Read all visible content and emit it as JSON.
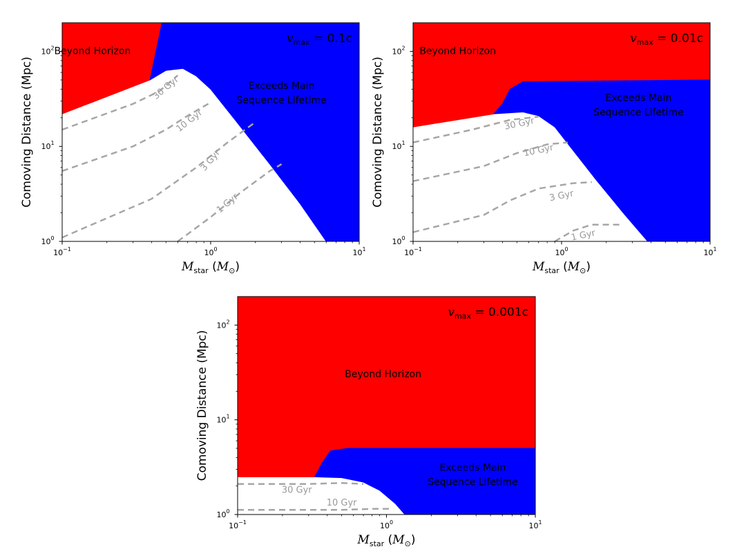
{
  "chart_data": [
    {
      "type": "area",
      "title": "v_max = 0.1c",
      "title_parts": {
        "var": "v",
        "sub": "max",
        "rest": " = 0.1c"
      },
      "xlabel": "M_star (M_⊙)",
      "xlabel_parts": {
        "var": "M",
        "sub": "star",
        "unit": "M",
        "unit_sub": "⊙"
      },
      "ylabel": "Comoving Distance (Mpc)",
      "xscale": "log",
      "yscale": "log",
      "xlim": [
        0.1,
        10
      ],
      "ylim": [
        1,
        200
      ],
      "xticks": [
        {
          "v": 0.1,
          "base": "10",
          "exp": "−1"
        },
        {
          "v": 1,
          "base": "10",
          "exp": "0"
        },
        {
          "v": 10,
          "base": "10",
          "exp": "1"
        }
      ],
      "yticks": [
        {
          "v": 1,
          "base": "10",
          "exp": "0"
        },
        {
          "v": 10,
          "base": "10",
          "exp": "1"
        },
        {
          "v": 100,
          "base": "10",
          "exp": "2"
        }
      ],
      "regions": [
        {
          "name": "Beyond Horizon",
          "lines": [
            "Beyond Horizon"
          ],
          "color": "#ff0000",
          "label_pos": [
            0.16,
            100
          ],
          "polygon": [
            [
              0.1,
              200
            ],
            [
              0.1,
              22
            ],
            [
              0.39,
              50
            ],
            [
              0.47,
              200
            ]
          ]
        },
        {
          "name": "Exceeds Main Sequence Lifetime",
          "lines": [
            "Exceeds Main",
            "Sequence Lifetime"
          ],
          "color": "#0000ff",
          "label_pos": [
            3.0,
            36
          ],
          "polygon": [
            [
              0.47,
              200
            ],
            [
              0.39,
              50
            ],
            [
              0.5,
              63
            ],
            [
              0.65,
              66
            ],
            [
              0.8,
              55
            ],
            [
              1.0,
              40
            ],
            [
              1.5,
              18
            ],
            [
              2.5,
              6.5
            ],
            [
              4.0,
              2.5
            ],
            [
              6.0,
              1
            ],
            [
              10,
              1
            ],
            [
              10,
              200
            ]
          ]
        }
      ],
      "boundary": [
        [
          0.1,
          22
        ],
        [
          0.39,
          50
        ],
        [
          0.5,
          63
        ],
        [
          0.65,
          66
        ],
        [
          0.8,
          55
        ],
        [
          1.0,
          40
        ],
        [
          1.5,
          18
        ],
        [
          2.5,
          6.5
        ],
        [
          4.0,
          2.5
        ],
        [
          6.0,
          1
        ]
      ],
      "contours": [
        {
          "label": "30 Gyr",
          "points": [
            [
              0.1,
              15
            ],
            [
              0.3,
              28
            ],
            [
              0.45,
              38
            ],
            [
              0.6,
              56
            ]
          ],
          "label_pos": [
            0.5,
            41
          ],
          "rot": -40
        },
        {
          "label": "10 Gyr",
          "points": [
            [
              0.1,
              5.5
            ],
            [
              0.3,
              10
            ],
            [
              0.5,
              15
            ],
            [
              0.7,
              21
            ],
            [
              1.0,
              29
            ]
          ],
          "label_pos": [
            0.72,
            18.5
          ],
          "rot": -38
        },
        {
          "label": "3 Gyr",
          "points": [
            [
              0.1,
              1.1
            ],
            [
              0.4,
              2.8
            ],
            [
              0.8,
              6
            ],
            [
              1.3,
              11
            ],
            [
              2.0,
              18
            ]
          ],
          "label_pos": [
            1.0,
            7.1
          ],
          "rot": -50
        },
        {
          "label": "1 Gyr",
          "points": [
            [
              0.6,
              1
            ],
            [
              1.0,
              1.8
            ],
            [
              1.6,
              3.3
            ],
            [
              2.5,
              5.5
            ],
            [
              3.0,
              6.5
            ]
          ],
          "label_pos": [
            1.3,
            2.5
          ],
          "rot": -40
        }
      ],
      "vmax_label": "v_max = 0.1c"
    },
    {
      "type": "area",
      "title": "v_max = 0.01c",
      "title_parts": {
        "var": "v",
        "sub": "max",
        "rest": " = 0.01c"
      },
      "xlabel": "M_star (M_⊙)",
      "xlabel_parts": {
        "var": "M",
        "sub": "star",
        "unit": "M",
        "unit_sub": "⊙"
      },
      "ylabel": "Comoving Distance (Mpc)",
      "xscale": "log",
      "yscale": "log",
      "xlim": [
        0.1,
        10
      ],
      "ylim": [
        1,
        200
      ],
      "xticks": [
        {
          "v": 0.1,
          "base": "10",
          "exp": "−1"
        },
        {
          "v": 1,
          "base": "10",
          "exp": "0"
        },
        {
          "v": 10,
          "base": "10",
          "exp": "1"
        }
      ],
      "yticks": [
        {
          "v": 1,
          "base": "10",
          "exp": "0"
        },
        {
          "v": 10,
          "base": "10",
          "exp": "1"
        },
        {
          "v": 100,
          "base": "10",
          "exp": "2"
        }
      ],
      "regions": [
        {
          "name": "Beyond Horizon",
          "lines": [
            "Beyond Horizon"
          ],
          "color": "#ff0000",
          "label_pos": [
            0.2,
            100
          ],
          "polygon": [
            [
              0.1,
              200
            ],
            [
              0.1,
              16
            ],
            [
              0.35,
              22
            ],
            [
              0.4,
              28
            ],
            [
              0.45,
              40
            ],
            [
              0.55,
              48
            ],
            [
              10,
              50
            ],
            [
              10,
              200
            ]
          ]
        },
        {
          "name": "Exceeds Main Sequence Lifetime",
          "lines": [
            "Exceeds Main",
            "Sequence Lifetime"
          ],
          "color": "#0000ff",
          "label_pos": [
            3.3,
            27
          ],
          "polygon": [
            [
              0.35,
              22
            ],
            [
              0.4,
              28
            ],
            [
              0.45,
              40
            ],
            [
              0.55,
              48
            ],
            [
              10,
              50
            ],
            [
              10,
              1
            ],
            [
              3.8,
              1
            ],
            [
              2.6,
              2
            ],
            [
              1.7,
              4.5
            ],
            [
              1.2,
              9
            ],
            [
              0.9,
              16
            ],
            [
              0.7,
              21
            ],
            [
              0.55,
              23
            ]
          ]
        }
      ],
      "boundary": [
        [
          0.1,
          16
        ],
        [
          0.35,
          22
        ],
        [
          0.55,
          23
        ],
        [
          0.7,
          21
        ],
        [
          0.9,
          16
        ],
        [
          1.2,
          9
        ],
        [
          1.7,
          4.5
        ],
        [
          2.6,
          2
        ],
        [
          3.8,
          1
        ]
      ],
      "contours": [
        {
          "label": "30 Gyr",
          "points": [
            [
              0.1,
              11
            ],
            [
              0.25,
              15
            ],
            [
              0.45,
              19
            ],
            [
              0.7,
              20.5
            ]
          ],
          "label_pos": [
            0.52,
            17.2
          ],
          "rot": -12
        },
        {
          "label": "10 Gyr",
          "points": [
            [
              0.1,
              4.3
            ],
            [
              0.3,
              6.2
            ],
            [
              0.5,
              8.5
            ],
            [
              0.8,
              10.5
            ],
            [
              1.1,
              11
            ]
          ],
          "label_pos": [
            0.7,
            9.0
          ],
          "rot": -12
        },
        {
          "label": "3 Gyr",
          "points": [
            [
              0.1,
              1.25
            ],
            [
              0.3,
              1.9
            ],
            [
              0.45,
              2.7
            ],
            [
              0.7,
              3.6
            ],
            [
              1.2,
              4.1
            ],
            [
              1.6,
              4.2
            ]
          ],
          "label_pos": [
            1.0,
            3.0
          ],
          "rot": -12
        },
        {
          "label": "1 Gyr",
          "points": [
            [
              0.9,
              1
            ],
            [
              1.2,
              1.3
            ],
            [
              1.6,
              1.5
            ],
            [
              2.5,
              1.5
            ]
          ],
          "label_pos": [
            1.4,
            1.15
          ],
          "rot": -12
        }
      ],
      "vmax_label": "v_max = 0.01c"
    },
    {
      "type": "area",
      "title": "v_max = 0.001c",
      "title_parts": {
        "var": "v",
        "sub": "max",
        "rest": " = 0.001c"
      },
      "xlabel": "M_star (M_⊙)",
      "xlabel_parts": {
        "var": "M",
        "sub": "star",
        "unit": "M",
        "unit_sub": "⊙"
      },
      "ylabel": "Comoving Distance (Mpc)",
      "xscale": "log",
      "yscale": "log",
      "xlim": [
        0.1,
        10
      ],
      "ylim": [
        1,
        200
      ],
      "xticks": [
        {
          "v": 0.1,
          "base": "10",
          "exp": "−1"
        },
        {
          "v": 1,
          "base": "10",
          "exp": "0"
        },
        {
          "v": 10,
          "base": "10",
          "exp": "1"
        }
      ],
      "yticks": [
        {
          "v": 1,
          "base": "10",
          "exp": "0"
        },
        {
          "v": 10,
          "base": "10",
          "exp": "1"
        },
        {
          "v": 100,
          "base": "10",
          "exp": "2"
        }
      ],
      "regions": [
        {
          "name": "Beyond Horizon",
          "lines": [
            "Beyond Horizon"
          ],
          "color": "#ff0000",
          "label_pos": [
            0.95,
            30
          ],
          "polygon": [
            [
              0.1,
              200
            ],
            [
              0.1,
              2.5
            ],
            [
              0.33,
              2.5
            ],
            [
              0.37,
              3.5
            ],
            [
              0.42,
              4.7
            ],
            [
              0.55,
              5
            ],
            [
              10,
              5
            ],
            [
              10,
              200
            ]
          ]
        },
        {
          "name": "Exceeds Main Sequence Lifetime",
          "lines": [
            "Exceeds Main",
            "Sequence Lifetime"
          ],
          "color": "#0000ff",
          "label_pos": [
            3.8,
            2.6
          ],
          "polygon": [
            [
              0.33,
              2.5
            ],
            [
              0.37,
              3.5
            ],
            [
              0.42,
              4.7
            ],
            [
              0.55,
              5
            ],
            [
              10,
              5
            ],
            [
              10,
              1
            ],
            [
              1.33,
              1
            ],
            [
              1.15,
              1.3
            ],
            [
              0.9,
              1.8
            ],
            [
              0.7,
              2.2
            ],
            [
              0.5,
              2.45
            ]
          ]
        }
      ],
      "boundary": [
        [
          0.1,
          2.5
        ],
        [
          0.5,
          2.45
        ],
        [
          0.7,
          2.2
        ],
        [
          0.9,
          1.8
        ],
        [
          1.15,
          1.3
        ],
        [
          1.33,
          1
        ]
      ],
      "contours": [
        {
          "label": "30 Gyr",
          "points": [
            [
              0.1,
              2.1
            ],
            [
              0.3,
              2.1
            ],
            [
              0.5,
              2.15
            ],
            [
              0.7,
              2.1
            ]
          ],
          "label_pos": [
            0.25,
            1.8
          ],
          "rot": 0
        },
        {
          "label": "10 Gyr",
          "points": [
            [
              0.1,
              1.12
            ],
            [
              0.5,
              1.12
            ],
            [
              0.85,
              1.15
            ],
            [
              1.05,
              1.15
            ]
          ],
          "label_pos": [
            0.5,
            1.32
          ],
          "rot": 0
        }
      ],
      "vmax_label": "v_max = 0.001c"
    }
  ]
}
